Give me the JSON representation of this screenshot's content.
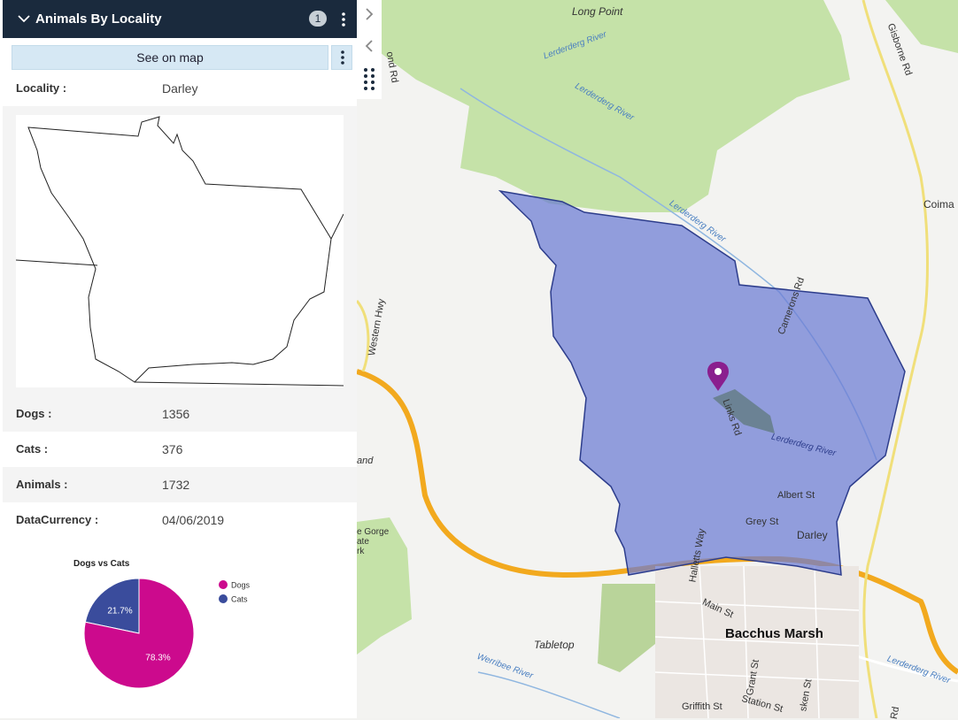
{
  "widget": {
    "title": "Animals By Locality",
    "badge": "1",
    "see_on_map": "See on map"
  },
  "fields": [
    {
      "label": "Locality :",
      "value": "Darley"
    },
    {
      "label": "Dogs :",
      "value": "1356"
    },
    {
      "label": "Cats :",
      "value": "376"
    },
    {
      "label": "Animals :",
      "value": "1732"
    },
    {
      "label": "DataCurrency :",
      "value": "04/06/2019"
    }
  ],
  "chart_data": {
    "type": "pie",
    "title": "Dogs vs Cats",
    "categories": [
      "Dogs",
      "Cats"
    ],
    "values": [
      78.3,
      21.7
    ],
    "labels": [
      "78.3%",
      "21.7%"
    ],
    "colors": [
      "#cc0a8d",
      "#3a4c9c"
    ],
    "legend": "right"
  },
  "map": {
    "labels": {
      "long_point": "Long Point",
      "bacchus_marsh": "Bacchus Marsh",
      "darley": "Darley",
      "tabletop": "Tabletop",
      "coimadai": "Coima",
      "albert_st": "Albert St",
      "grey_st": "Grey St",
      "main_st": "Main St",
      "links_rd": "Links Rd",
      "camerons_rd": "Camerons Rd",
      "gisborne_rd": "Gisborne Rd",
      "halletts_way": "Halletts Way",
      "western_hwy": "Western Hwy",
      "griffith_st": "Griffith St",
      "station_st": "Station St",
      "grant_st": "Grant St",
      "gorge": "e Gorge",
      "gorge2": "ate",
      "gorge3": "rk",
      "land": "and",
      "rd_top": "ond Rd",
      "rd_right": "Rd",
      "rd_sk": "sken St"
    },
    "rivers": {
      "lerderderg1": "Lerderderg River",
      "lerderderg2": "Lerderderg River",
      "lerderderg3": "Lerderderg River",
      "lerderderg4": "Lerderderg River",
      "lerderderg5": "Lerderderg River",
      "werribee": "Werribee River"
    }
  }
}
